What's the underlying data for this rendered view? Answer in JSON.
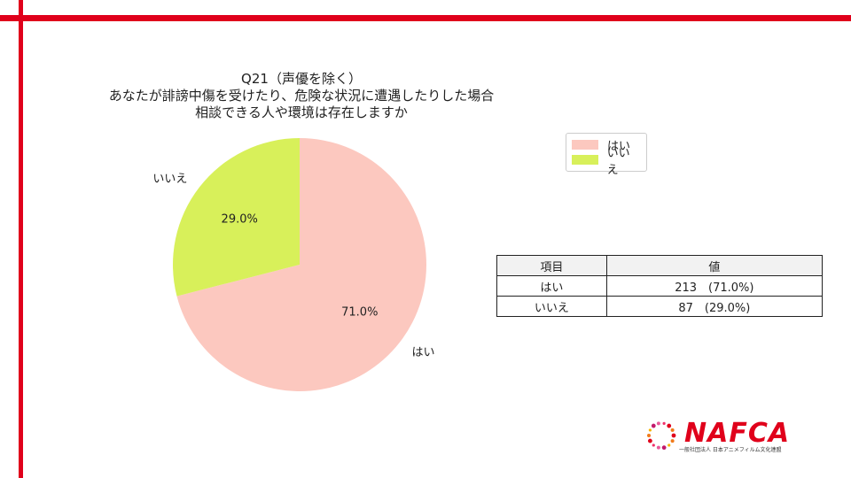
{
  "title_lines": [
    "Q21（声優を除く）",
    "あなたが誹謗中傷を受けたり、危険な状況に遭遇したりした場合",
    "相談できる人や環境は存在しますか"
  ],
  "chart_data": {
    "type": "pie",
    "categories": [
      "はい",
      "いいえ"
    ],
    "values": [
      213,
      87
    ],
    "percent_labels": [
      "71.0%",
      "29.0%"
    ],
    "colors": [
      "#fcc8bf",
      "#d8f05a"
    ],
    "start_angle": 90,
    "direction": "clockwise",
    "legend_position": "top-right"
  },
  "legend": {
    "items": [
      {
        "label": "はい",
        "color": "#fcc8bf"
      },
      {
        "label": "いいえ",
        "color": "#d8f05a"
      }
    ]
  },
  "table": {
    "headers": [
      "項目",
      "値"
    ],
    "rows": [
      {
        "item": "はい",
        "value": "213　(71.0%)"
      },
      {
        "item": "いいえ",
        "value": "87　(29.0%)"
      }
    ]
  },
  "logo": {
    "text": "NAFCA",
    "subtitle": "一般社団法人 日本アニメフィルム文化連盟",
    "accent": "#e0001b"
  },
  "frame_color": "#e0001b"
}
